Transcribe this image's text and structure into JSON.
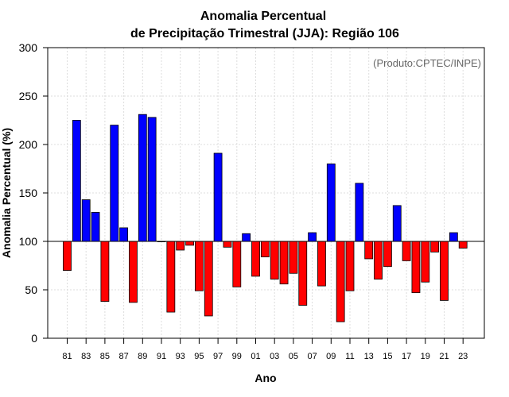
{
  "chart_data": {
    "type": "bar",
    "title_line1": "Anomalia Percentual",
    "title_line2": "de Precipitação Trimestral (JJA): Região 106",
    "xlabel": "Ano",
    "ylabel": "Anomalia Percentual (%)",
    "credit": "(Produto:CPTEC/INPE)",
    "baseline": 100,
    "ylim": [
      0,
      300
    ],
    "yticks": [
      0,
      50,
      100,
      150,
      200,
      250,
      300
    ],
    "grid": true,
    "colors": {
      "above": "#0000ff",
      "below": "#ff0000",
      "edge": "#000000",
      "grid": "#dddddd",
      "baseline": "#000000"
    },
    "categories": [
      "81",
      "82",
      "83",
      "84",
      "85",
      "86",
      "87",
      "88",
      "89",
      "90",
      "91",
      "92",
      "93",
      "94",
      "95",
      "96",
      "97",
      "98",
      "99",
      "00",
      "01",
      "02",
      "03",
      "04",
      "05",
      "06",
      "07",
      "08",
      "09",
      "10",
      "11",
      "12",
      "13",
      "14",
      "15",
      "16",
      "17",
      "18",
      "19",
      "20",
      "21",
      "22",
      "23"
    ],
    "xtick_labels": [
      "81",
      "83",
      "85",
      "87",
      "89",
      "91",
      "93",
      "95",
      "97",
      "99",
      "01",
      "03",
      "05",
      "07",
      "09",
      "11",
      "13",
      "15",
      "17",
      "19",
      "21",
      "23"
    ],
    "values": [
      70,
      225,
      143,
      130,
      38,
      220,
      114,
      37,
      231,
      228,
      100,
      27,
      91,
      96,
      49,
      23,
      191,
      94,
      53,
      108,
      64,
      84,
      61,
      56,
      67,
      34,
      109,
      54,
      180,
      17,
      49,
      160,
      82,
      61,
      74,
      137,
      80,
      47,
      58,
      89,
      39,
      109,
      93
    ]
  }
}
